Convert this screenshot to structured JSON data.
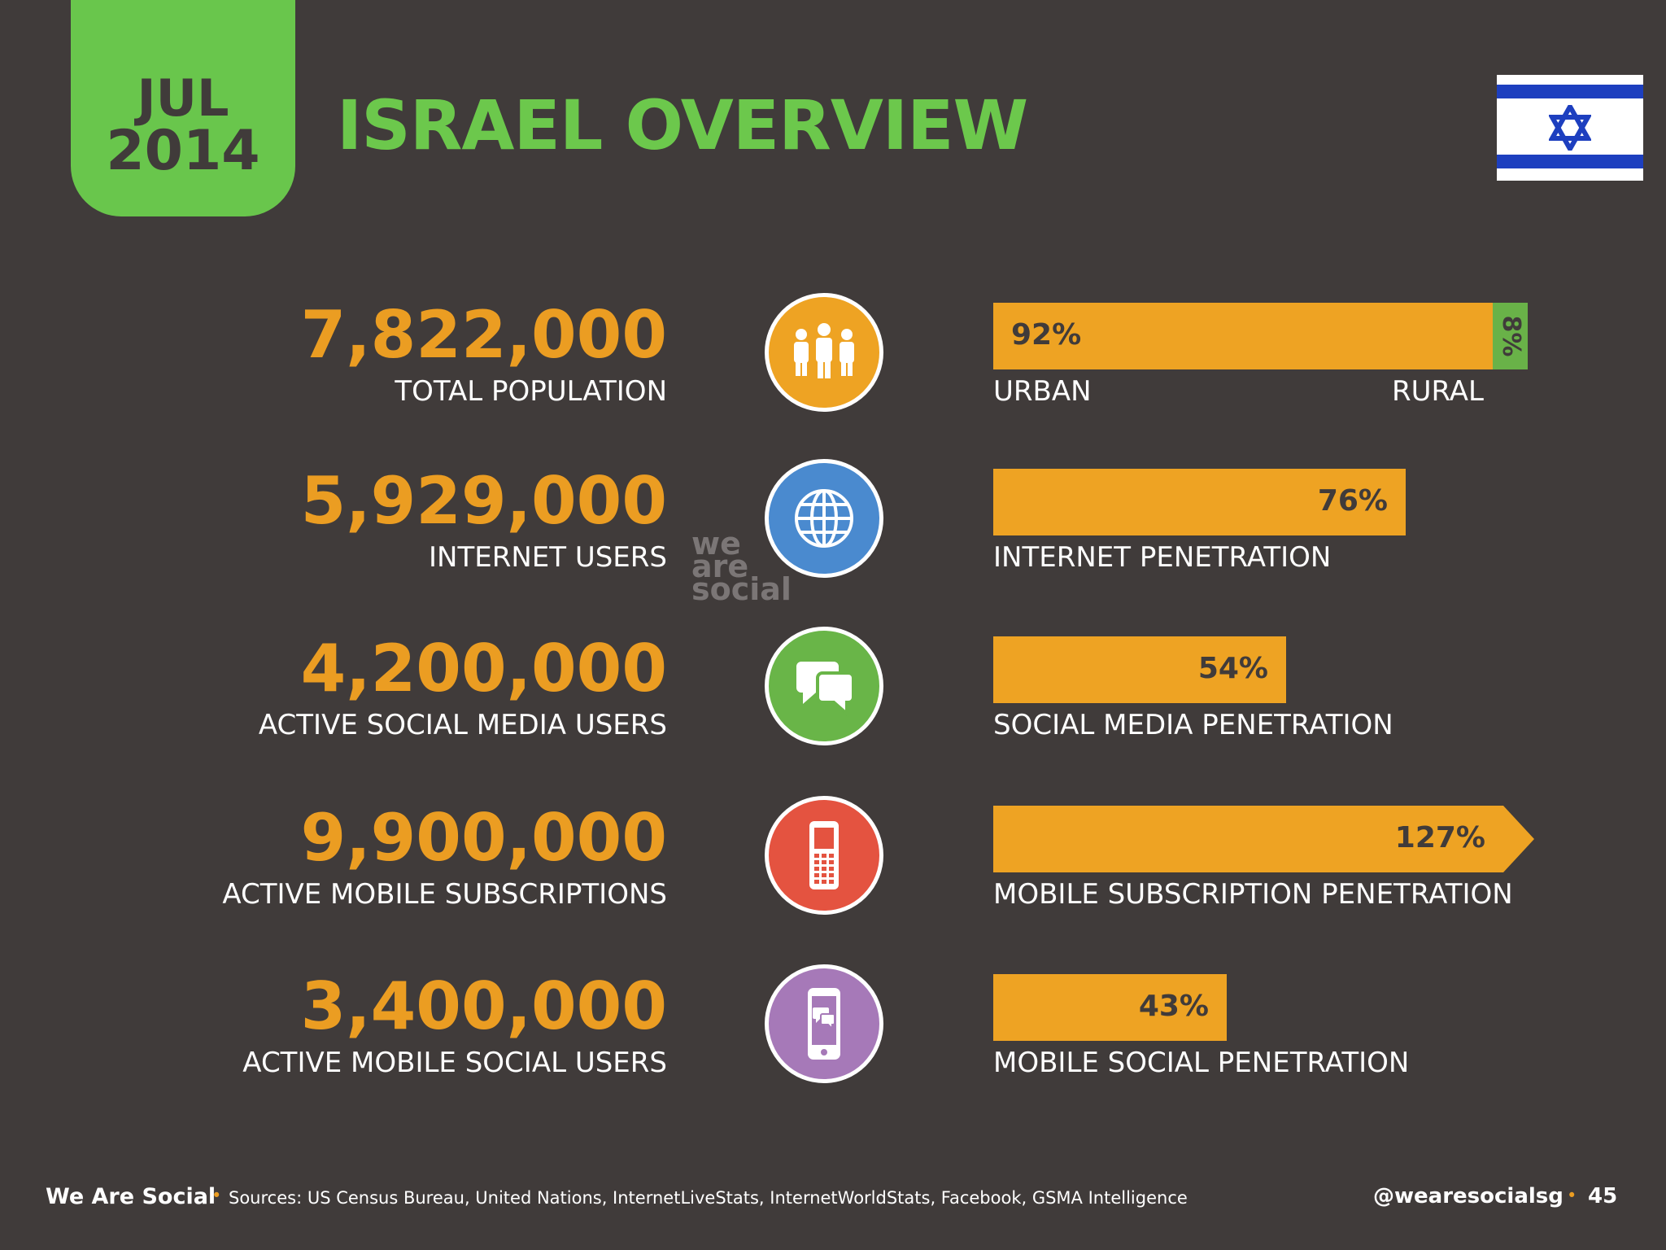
{
  "header": {
    "month": "JUL",
    "year": "2014",
    "title": "ISRAEL OVERVIEW"
  },
  "colors": {
    "accent_green": "#6cc84c",
    "number_orange": "#eb9d22",
    "bar_orange": "#eea323",
    "rural_green": "#69b248",
    "background": "#403b3a"
  },
  "chart_data": {
    "type": "bar",
    "title": "ISRAEL OVERVIEW",
    "categories": [
      "URBAN",
      "INTERNET PENETRATION",
      "SOCIAL MEDIA PENETRATION",
      "MOBILE SUBSCRIPTION PENETRATION",
      "MOBILE SOCIAL PENETRATION"
    ],
    "values": [
      92,
      76,
      54,
      127,
      43
    ],
    "unit": "%",
    "rural_value": 8
  },
  "stats": [
    {
      "value": "7,822,000",
      "label": "TOTAL POPULATION",
      "icon": "people-icon",
      "icon_color": "#eea323",
      "bar_value": "92%",
      "bar_label": "URBAN",
      "secondary_value": "8%",
      "secondary_label": "RURAL"
    },
    {
      "value": "5,929,000",
      "label": "INTERNET USERS",
      "icon": "globe-icon",
      "icon_color": "#4a8acf",
      "bar_value": "76%",
      "bar_label": "INTERNET PENETRATION"
    },
    {
      "value": "4,200,000",
      "label": "ACTIVE SOCIAL MEDIA USERS",
      "icon": "chat-bubbles-icon",
      "icon_color": "#69b548",
      "bar_value": "54%",
      "bar_label": "SOCIAL MEDIA PENETRATION"
    },
    {
      "value": "9,900,000",
      "label": "ACTIVE MOBILE SUBSCRIPTIONS",
      "icon": "mobile-phone-icon",
      "icon_color": "#e45340",
      "bar_value": "127%",
      "bar_label": "MOBILE SUBSCRIPTION PENETRATION"
    },
    {
      "value": "3,400,000",
      "label": "ACTIVE MOBILE SOCIAL USERS",
      "icon": "smartphone-chat-icon",
      "icon_color": "#a679b8",
      "bar_value": "43%",
      "bar_label": "MOBILE SOCIAL PENETRATION"
    }
  ],
  "watermark": [
    "we",
    "are",
    "social"
  ],
  "footer": {
    "brand": "We Are Social",
    "separator": "•",
    "sources": "Sources: US Census Bureau, United Nations, InternetLiveStats, InternetWorldStats, Facebook, GSMA Intelligence",
    "handle": "@wearesocialsg",
    "page": "45"
  }
}
